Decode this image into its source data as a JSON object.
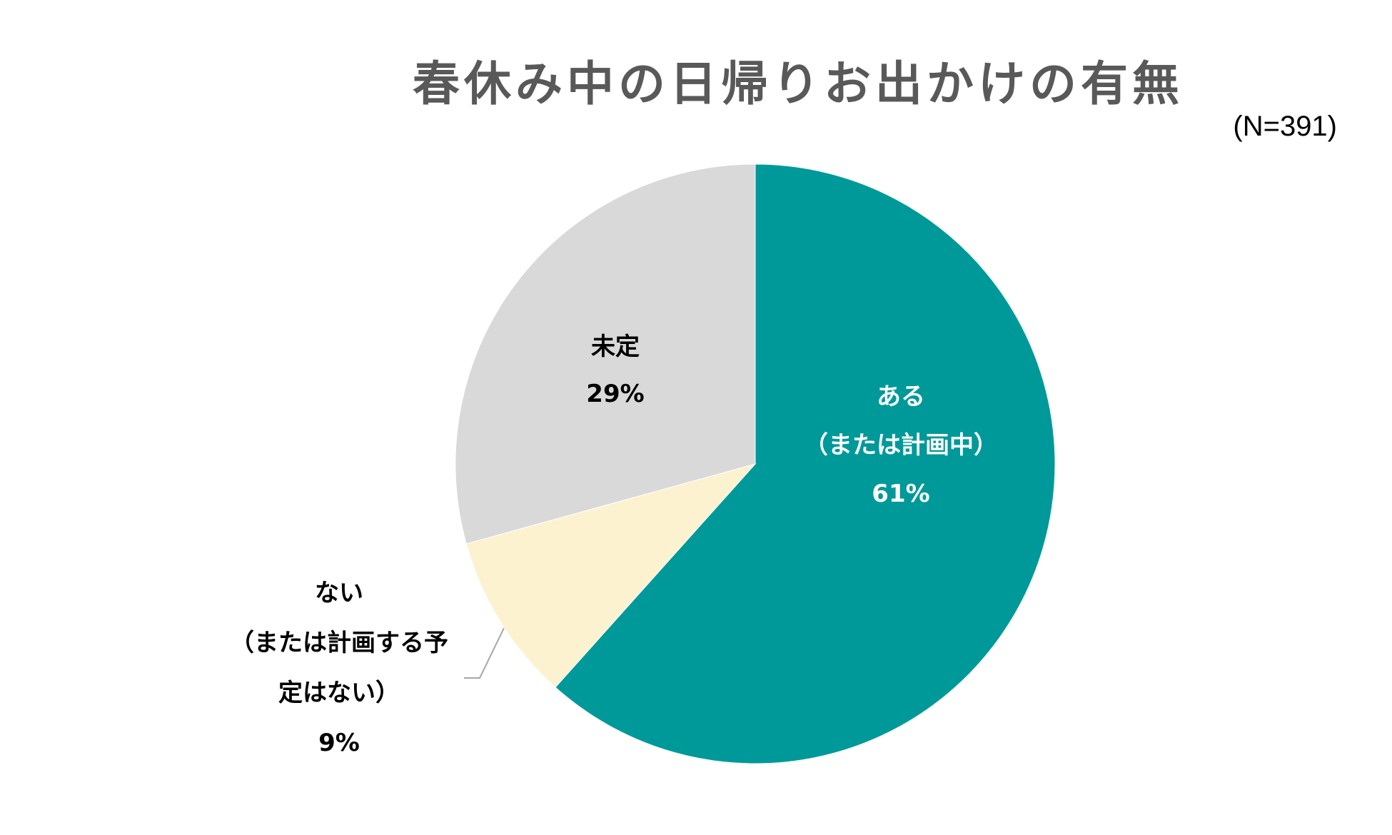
{
  "chart_data": {
    "type": "pie",
    "title": "春休み中の日帰りお出かけの有無",
    "note": "(N=391)",
    "start_angle_deg": 0,
    "direction": "clockwise",
    "slices": [
      {
        "key": "aru",
        "label_lines": [
          "ある",
          "（または計画中）"
        ],
        "value": 61,
        "value_label": "61%",
        "color": "#009999",
        "text_color": "#ffffff"
      },
      {
        "key": "nai",
        "label_lines": [
          "ない",
          "（または計画する予",
          "定はない）"
        ],
        "value": 9,
        "value_label": "9%",
        "color": "#FCF2D0",
        "text_color": "#000000",
        "leader_line": true
      },
      {
        "key": "mitei",
        "label_lines": [
          "未定"
        ],
        "value": 29,
        "value_label": "29%",
        "color": "#D9D9D9",
        "text_color": "#000000"
      }
    ]
  }
}
